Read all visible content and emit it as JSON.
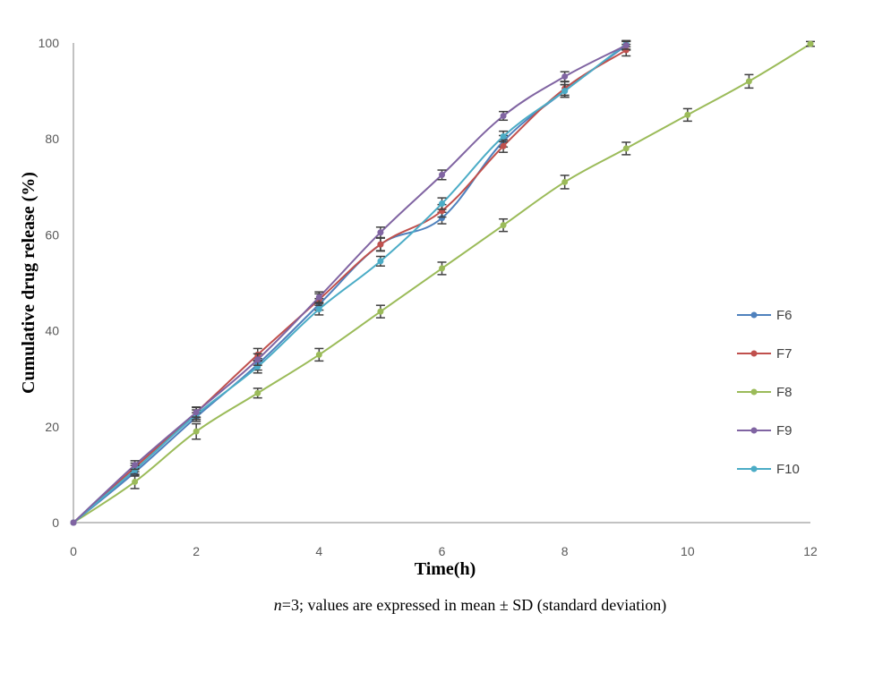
{
  "chart_data": {
    "type": "line",
    "title": "",
    "xlabel": "Time(h)",
    "ylabel": "Cumulative drug release (%)",
    "xlim": [
      0,
      12
    ],
    "ylim": [
      0,
      100
    ],
    "xticks": [
      0,
      2,
      4,
      6,
      8,
      10,
      12
    ],
    "yticks": [
      0,
      20,
      40,
      60,
      80,
      100
    ],
    "grid": false,
    "legend": "right",
    "series": [
      {
        "name": "F6",
        "color": "#4F81BD",
        "x": [
          0,
          1,
          2,
          3,
          4,
          5,
          6,
          7,
          8,
          9
        ],
        "y": [
          0,
          10.5,
          22,
          33,
          45.5,
          58,
          63.5,
          79.5,
          90,
          99.5
        ],
        "err": [
          0,
          0.8,
          0.9,
          1.2,
          1.2,
          1.3,
          1.2,
          1.2,
          1.3,
          1.0
        ]
      },
      {
        "name": "F7",
        "color": "#C0504D",
        "x": [
          0,
          1,
          2,
          3,
          4,
          5,
          6,
          7,
          8,
          9
        ],
        "y": [
          0,
          11.5,
          23,
          35,
          46.5,
          58,
          65,
          78.5,
          90.5,
          98.5
        ],
        "err": [
          0,
          0.9,
          1.1,
          1.3,
          1.2,
          1.4,
          1.3,
          1.3,
          1.4,
          1.2
        ]
      },
      {
        "name": "F8",
        "color": "#9BBB59",
        "x": [
          0,
          1,
          2,
          3,
          4,
          5,
          6,
          7,
          8,
          9,
          10,
          11,
          12
        ],
        "y": [
          0,
          8.5,
          19,
          27,
          35,
          44,
          53,
          62,
          71,
          78,
          85,
          92,
          99.8
        ],
        "err": [
          0,
          1.4,
          1.6,
          1.0,
          1.3,
          1.3,
          1.3,
          1.3,
          1.4,
          1.3,
          1.3,
          1.4,
          0.5
        ]
      },
      {
        "name": "F9",
        "color": "#8064A2",
        "x": [
          0,
          1,
          2,
          3,
          4,
          5,
          6,
          7,
          8,
          9
        ],
        "y": [
          0,
          12,
          23,
          34,
          47,
          60.5,
          72.5,
          84.8,
          93,
          99.5
        ],
        "err": [
          0,
          0.9,
          1.0,
          1.2,
          1.1,
          1.1,
          1.0,
          0.9,
          1.0,
          0.8
        ]
      },
      {
        "name": "F10",
        "color": "#4BACC6",
        "x": [
          0,
          1,
          2,
          3,
          4,
          5,
          6,
          7,
          8,
          9
        ],
        "y": [
          0,
          11,
          22.5,
          32.5,
          44.5,
          54.5,
          66.5,
          80.5,
          90,
          99.8
        ],
        "err": [
          0,
          0.9,
          1.0,
          1.3,
          1.2,
          1.0,
          1.2,
          1.1,
          1.3,
          0.6
        ]
      }
    ]
  },
  "footnote": {
    "n_italic": "n",
    "text": "=3; values are expressed in mean ± SD (standard deviation)"
  }
}
